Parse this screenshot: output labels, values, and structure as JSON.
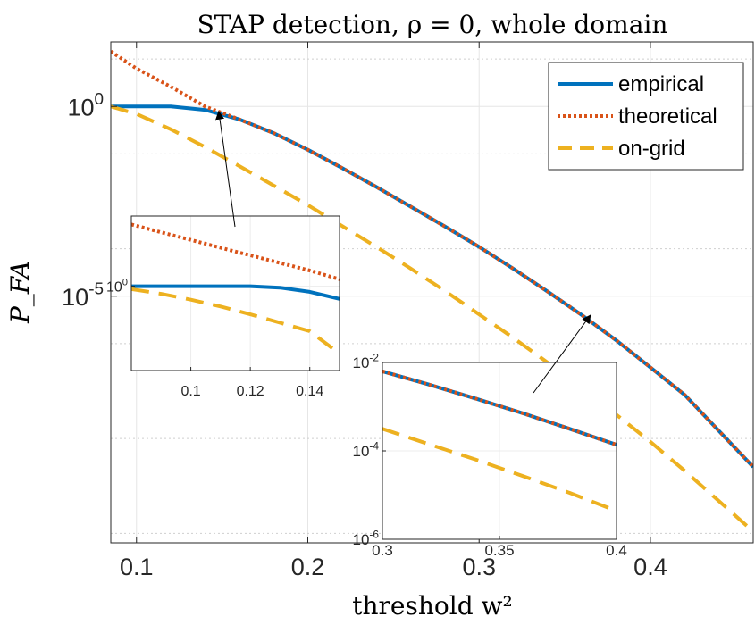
{
  "chart_data": {
    "type": "line",
    "title": "STAP detection, ρ = 0, whole domain",
    "xlabel": "threshold w²",
    "ylabel": "P_FA",
    "xlim": [
      0.085,
      0.46
    ],
    "ylog": true,
    "ylim_log10": [
      -11.5,
      1.7
    ],
    "x_ticks": [
      0.1,
      0.2,
      0.3,
      0.4
    ],
    "x_tick_labels": [
      "0.1",
      "0.2",
      "0.3",
      "0.4"
    ],
    "y_ticks_log10": [
      0,
      -5
    ],
    "y_tick_labels": [
      "10^0",
      "10^-5"
    ],
    "grid": true,
    "legend": {
      "placement": "top-right",
      "entries": [
        "empirical",
        "theoretical",
        "on-grid"
      ]
    },
    "series": [
      {
        "name": "empirical",
        "color": "#0072BD",
        "style": "solid",
        "x": [
          0.085,
          0.1,
          0.12,
          0.14,
          0.16,
          0.18,
          0.2,
          0.22,
          0.24,
          0.26,
          0.28,
          0.3,
          0.32,
          0.34,
          0.36,
          0.38,
          0.4,
          0.42,
          0.46
        ],
        "log10_y": [
          0.0,
          0.0,
          0.0,
          -0.09,
          -0.34,
          -0.7,
          -1.14,
          -1.62,
          -2.12,
          -2.64,
          -3.16,
          -3.7,
          -4.28,
          -4.88,
          -5.5,
          -6.16,
          -6.88,
          -7.6,
          -9.5
        ]
      },
      {
        "name": "theoretical",
        "color": "#D95319",
        "style": "dotted",
        "x": [
          0.085,
          0.1,
          0.12,
          0.14,
          0.16,
          0.18,
          0.2,
          0.22,
          0.24,
          0.26,
          0.28,
          0.3,
          0.32,
          0.34,
          0.36,
          0.38,
          0.4,
          0.42,
          0.46
        ],
        "log10_y": [
          1.45,
          1.0,
          0.52,
          0.0,
          -0.34,
          -0.7,
          -1.14,
          -1.62,
          -2.12,
          -2.64,
          -3.16,
          -3.7,
          -4.28,
          -4.88,
          -5.5,
          -6.16,
          -6.88,
          -7.6,
          -9.5
        ]
      },
      {
        "name": "on-grid",
        "color": "#EDB120",
        "style": "dashed",
        "x": [
          0.085,
          0.1,
          0.12,
          0.14,
          0.16,
          0.18,
          0.2,
          0.22,
          0.24,
          0.26,
          0.28,
          0.3,
          0.32,
          0.34,
          0.36,
          0.38,
          0.4,
          0.42,
          0.44,
          0.46
        ],
        "log10_y": [
          0.0,
          -0.2,
          -0.6,
          -1.07,
          -1.57,
          -2.08,
          -2.6,
          -3.15,
          -3.7,
          -4.27,
          -4.86,
          -5.48,
          -6.1,
          -6.75,
          -7.42,
          -8.12,
          -8.84,
          -9.6,
          -10.4,
          -11.2
        ]
      }
    ],
    "insets": [
      {
        "xlim": [
          0.08,
          0.15
        ],
        "ylim_log10": [
          -3.0,
          2.5
        ],
        "x_ticks": [
          0.1,
          0.12,
          0.14
        ],
        "x_tick_labels": [
          "0.1",
          "0.12",
          "0.14"
        ],
        "y_ticks_log10": [
          0
        ],
        "y_tick_labels": [
          "10^0"
        ],
        "series": [
          {
            "name": "empirical",
            "x": [
              0.08,
              0.09,
              0.1,
              0.11,
              0.12,
              0.13,
              0.14,
              0.15
            ],
            "log10_y": [
              0.0,
              0.0,
              0.0,
              0.0,
              0.0,
              -0.05,
              -0.2,
              -0.45
            ]
          },
          {
            "name": "theoretical",
            "x": [
              0.08,
              0.09,
              0.1,
              0.11,
              0.12,
              0.13,
              0.14,
              0.15
            ],
            "log10_y": [
              2.2,
              1.92,
              1.65,
              1.37,
              1.1,
              0.83,
              0.56,
              0.25
            ]
          },
          {
            "name": "on-grid",
            "x": [
              0.08,
              0.09,
              0.1,
              0.11,
              0.12,
              0.13,
              0.14,
              0.15
            ],
            "log10_y": [
              -0.1,
              -0.27,
              -0.48,
              -0.72,
              -1.0,
              -1.3,
              -1.6,
              -2.4
            ]
          }
        ],
        "arrow_target": {
          "x": 0.148,
          "log10_y": -0.13
        }
      },
      {
        "xlim": [
          0.3,
          0.4
        ],
        "ylim_log10": [
          -6,
          -2
        ],
        "x_ticks": [
          0.3,
          0.35,
          0.4
        ],
        "x_tick_labels": [
          "0.3",
          "0.35",
          "0.4"
        ],
        "y_ticks_log10": [
          -2,
          -4,
          -6
        ],
        "y_tick_labels": [
          "10^-2",
          "10^-4",
          "10^-6"
        ],
        "series": [
          {
            "name": "empirical",
            "x": [
              0.3,
              0.32,
              0.34,
              0.36,
              0.38,
              0.4
            ],
            "log10_y": [
              -2.2,
              -2.5,
              -2.82,
              -3.15,
              -3.5,
              -3.86
            ]
          },
          {
            "name": "theoretical",
            "x": [
              0.3,
              0.32,
              0.34,
              0.36,
              0.38,
              0.4
            ],
            "log10_y": [
              -2.2,
              -2.5,
              -2.82,
              -3.15,
              -3.5,
              -3.86
            ]
          },
          {
            "name": "on-grid",
            "x": [
              0.3,
              0.32,
              0.34,
              0.36,
              0.38,
              0.4
            ],
            "log10_y": [
              -3.5,
              -3.85,
              -4.2,
              -4.57,
              -4.95,
              -5.36
            ]
          }
        ],
        "arrow_target": {
          "x": 0.365,
          "log10_y": -5.5
        }
      }
    ]
  }
}
